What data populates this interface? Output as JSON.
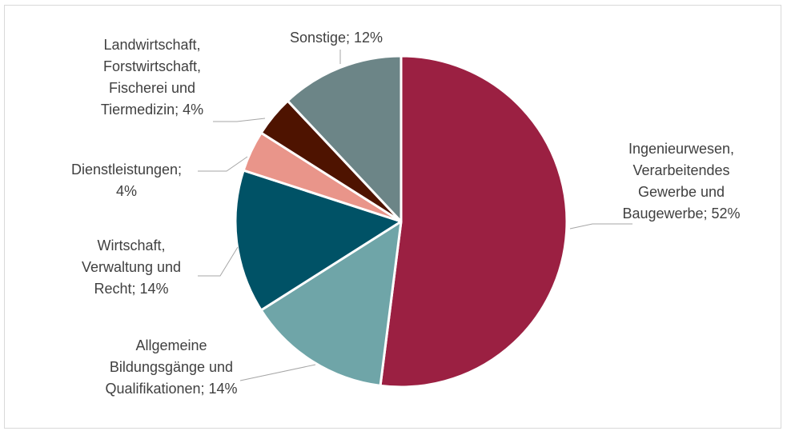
{
  "chart_data": {
    "type": "pie",
    "title": "",
    "start_angle_deg": 0,
    "direction": "clockwise",
    "legend": "none",
    "slices": [
      {
        "label_lines": [
          "Ingenieurwesen,",
          "Verarbeitendes",
          "Gewerbe und",
          "Baugewerbe; 52%"
        ],
        "value": 52,
        "color": "#9b2042"
      },
      {
        "label_lines": [
          "Allgemeine",
          "Bildungsgänge und",
          "Qualifikationen; 14%"
        ],
        "value": 14,
        "color": "#6fa5a8"
      },
      {
        "label_lines": [
          "Wirtschaft,",
          "Verwaltung und",
          "Recht; 14%"
        ],
        "value": 14,
        "color": "#005266"
      },
      {
        "label_lines": [
          "Dienstleistungen;",
          "4%"
        ],
        "value": 4,
        "color": "#e9958a"
      },
      {
        "label_lines": [
          "Landwirtschaft,",
          "Forstwirtschaft,",
          "Fischerei und",
          "Tiermedizin; 4%"
        ],
        "value": 4,
        "color": "#4e1300"
      },
      {
        "label_lines": [
          "Sonstige; 12%"
        ],
        "value": 12,
        "color": "#6c8587"
      }
    ]
  }
}
